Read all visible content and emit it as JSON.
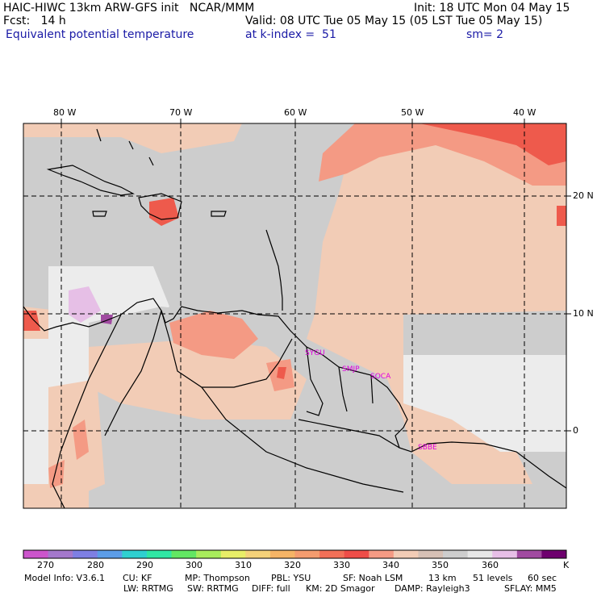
{
  "header": {
    "line1_left": "HAIC-HIWC 13km ARW-GFS init   NCAR/MMM",
    "line1_right": "Init: 18 UTC Mon 04 May 15",
    "line2_left": "Fcst:   14 h",
    "line2_right": "Valid: 08 UTC Tue 05 May 15 (05 LST Tue 05 May 15)",
    "line3_left": "Equivalent potential temperature",
    "line3_mid": "at k-index =  51",
    "line3_right": "sm= 2"
  },
  "map": {
    "lon_labels": [
      "80 W",
      "70 W",
      "60 W",
      "50 W",
      "40 W"
    ],
    "lat_labels": [
      "20 N",
      "10 N",
      "0"
    ],
    "stations": [
      "SYGU",
      "SMJP",
      "SOCA",
      "SBBE"
    ],
    "colors": {
      "background_field": "#f2ccb6",
      "grey_field": "#cdcdcd",
      "light_field": "#ececec",
      "warm_field": "#f49a84",
      "hot_field": "#ee5a4c",
      "station_label": "#e000e0"
    }
  },
  "colorbar": {
    "colors": [
      "#cc55cc",
      "#a478cc",
      "#7e7fe3",
      "#5c9de8",
      "#2fd0d0",
      "#30e6a4",
      "#62e663",
      "#a8ec5c",
      "#e8ee68",
      "#f4d27a",
      "#f5b466",
      "#f49c6f",
      "#f27058",
      "#ee4d48",
      "#f49a84",
      "#f2ccb6",
      "#d6c0b5",
      "#cdcdcd",
      "#e6e6e6",
      "#e6bfe6",
      "#a04aa0",
      "#6e006e"
    ],
    "tick_labels": [
      "270",
      "280",
      "290",
      "300",
      "310",
      "320",
      "330",
      "340",
      "350",
      "360"
    ],
    "unit": "K"
  },
  "footer": {
    "line1": [
      "Model Info: V3.6.1",
      "CU: KF",
      "MP: Thompson",
      "PBL: YSU",
      "SF: Noah LSM",
      "13 km",
      "51 levels",
      "60 sec"
    ],
    "line2": [
      "LW: RRTMG",
      "SW: RRTMG",
      "DIFF: full",
      "KM: 2D Smagor",
      "DAMP: Rayleigh3",
      "SFLAY: MM5"
    ]
  }
}
